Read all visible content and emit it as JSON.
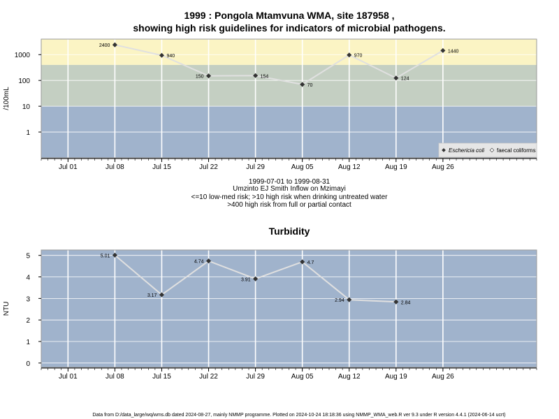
{
  "figure": {
    "title_line1": "1999 : Pongola Mtamvuna WMA, site 187958 ,",
    "title_line2": "showing high risk guidelines for indicators of microbial pathogens.",
    "footer": "Data from D:/data_large/wq/wms.db dated 2024-08-27, mainly NMMP programme. Plotted on 2024-10-24 18:18:36 using NMMP_WMA_web.R ver 9.3 under R version 4.4.1 (2024-06-14 ucrt)"
  },
  "colors": {
    "low_band": "#a0b3cc",
    "mid_band": "#c4cfc2",
    "high_band": "#fbf4c4",
    "line": "#e0e0e0",
    "grid": "#ffffff",
    "point": "#333333"
  },
  "chart_data": [
    {
      "type": "line",
      "ylabel": "/100mL",
      "yscale": "log",
      "ylim": [
        0.1,
        4000
      ],
      "yticks": [
        1,
        10,
        100,
        1000
      ],
      "ytick_labels": [
        "1",
        "10",
        "100",
        "1000"
      ],
      "xlim": [
        "1999-06-27",
        "1999-09-09"
      ],
      "xtick_dates": [
        "1999-07-01",
        "1999-07-08",
        "1999-07-15",
        "1999-07-22",
        "1999-07-29",
        "1999-08-05",
        "1999-08-12",
        "1999-08-19",
        "1999-08-26"
      ],
      "xtick_labels": [
        "Jul 01",
        "Jul 08",
        "Jul 15",
        "Jul 22",
        "Jul 29",
        "Aug 05",
        "Aug 12",
        "Aug 19",
        "Aug 26"
      ],
      "grid": true,
      "bands": [
        {
          "from": 0.1,
          "to": 10,
          "color": "#a0b3cc"
        },
        {
          "from": 10,
          "to": 400,
          "color": "#c4cfc2"
        },
        {
          "from": 400,
          "to": 4000,
          "color": "#fbf4c4"
        }
      ],
      "series": [
        {
          "name": "Eschericia coli",
          "x": [
            "1999-07-08",
            "1999-07-15",
            "1999-07-22",
            "1999-07-29",
            "1999-08-05",
            "1999-08-12",
            "1999-08-19",
            "1999-08-26"
          ],
          "values": [
            2400,
            940,
            150,
            154,
            70,
            970,
            124,
            1440
          ],
          "labels": [
            "2400",
            "940",
            "150",
            "154",
            "70",
            "970",
            "124",
            "1440"
          ]
        }
      ],
      "legend": {
        "position": "bottom-right",
        "entries": [
          "Eschericia coli",
          "faecal coliforms"
        ]
      },
      "notes": [
        "1999-07-01 to 1999-08-31",
        "Umzinto EJ Smith Inflow on Mzimayi",
        "<=10 low-med risk; >10 high risk when drinking untreated water",
        ">400 high risk from full or partial contact"
      ]
    },
    {
      "type": "line",
      "title": "Turbidity",
      "ylabel": "NTU",
      "yscale": "linear",
      "ylim": [
        -0.2,
        5.25
      ],
      "yticks": [
        0,
        1,
        2,
        3,
        4,
        5
      ],
      "ytick_labels": [
        "0",
        "1",
        "2",
        "3",
        "4",
        "5"
      ],
      "xlim": [
        "1999-06-27",
        "1999-09-09"
      ],
      "xtick_dates": [
        "1999-07-01",
        "1999-07-08",
        "1999-07-15",
        "1999-07-22",
        "1999-07-29",
        "1999-08-05",
        "1999-08-12",
        "1999-08-19",
        "1999-08-26"
      ],
      "xtick_labels": [
        "Jul 01",
        "Jul 08",
        "Jul 15",
        "Jul 22",
        "Jul 29",
        "Aug 05",
        "Aug 12",
        "Aug 19",
        "Aug 26"
      ],
      "grid": true,
      "series": [
        {
          "x": [
            "1999-07-08",
            "1999-07-15",
            "1999-07-22",
            "1999-07-29",
            "1999-08-05",
            "1999-08-12",
            "1999-08-19"
          ],
          "values": [
            5.01,
            3.17,
            4.74,
            3.91,
            4.7,
            2.94,
            2.84
          ],
          "labels": [
            "5.01",
            "3.17",
            "4.74",
            "3.91",
            "4.7",
            "2.94",
            "2.84"
          ]
        }
      ]
    }
  ]
}
